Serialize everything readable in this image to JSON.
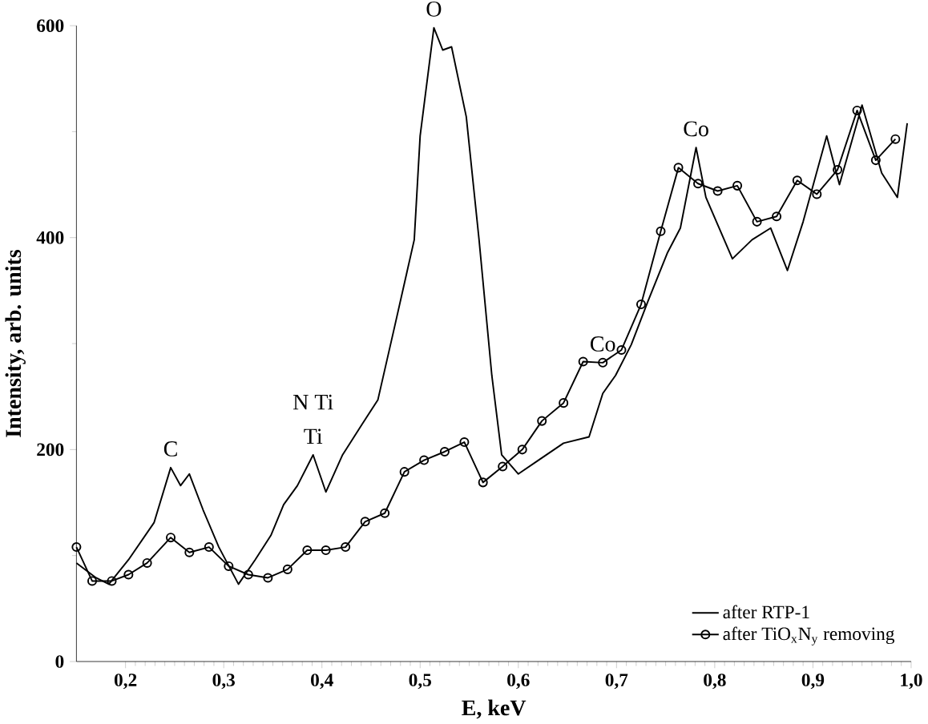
{
  "chart_data": {
    "type": "line",
    "xlabel": "E, keV",
    "ylabel": "Intensity, arb. units",
    "xlim": [
      0.15,
      1.0
    ],
    "ylim": [
      0,
      600
    ],
    "xticks": [
      {
        "value": 0.2,
        "label": "0,2"
      },
      {
        "value": 0.3,
        "label": "0,3"
      },
      {
        "value": 0.4,
        "label": "0,4"
      },
      {
        "value": 0.5,
        "label": "0,5"
      },
      {
        "value": 0.6,
        "label": "0,6"
      },
      {
        "value": 0.7,
        "label": "0,7"
      },
      {
        "value": 0.8,
        "label": "0,8"
      },
      {
        "value": 0.9,
        "label": "0,9"
      },
      {
        "value": 1.0,
        "label": "1,0"
      }
    ],
    "yticks": [
      0,
      200,
      400,
      600
    ],
    "grid": false,
    "legend": "bottom right",
    "series": [
      {
        "name": "after RTP-1",
        "color": "#000000",
        "marker": "none",
        "x": [
          0.15,
          0.17,
          0.183,
          0.203,
          0.229,
          0.246,
          0.256,
          0.265,
          0.279,
          0.295,
          0.315,
          0.332,
          0.348,
          0.361,
          0.375,
          0.391,
          0.404,
          0.421,
          0.441,
          0.457,
          0.474,
          0.494,
          0.5,
          0.514,
          0.523,
          0.532,
          0.547,
          0.56,
          0.573,
          0.583,
          0.6,
          0.619,
          0.646,
          0.672,
          0.686,
          0.699,
          0.715,
          0.732,
          0.752,
          0.765,
          0.781,
          0.791,
          0.818,
          0.838,
          0.857,
          0.874,
          0.89,
          0.914,
          0.927,
          0.95,
          0.97,
          0.986,
          0.996
        ],
        "values": [
          93,
          79,
          73,
          96,
          131,
          183,
          166,
          177,
          143,
          108,
          73,
          96,
          119,
          148,
          166,
          195,
          160,
          195,
          224,
          247,
          316,
          398,
          496,
          598,
          577,
          580,
          514,
          398,
          270,
          195,
          177,
          189,
          206,
          212,
          253,
          270,
          299,
          340,
          386,
          409,
          485,
          438,
          380,
          398,
          409,
          369,
          415,
          496,
          450,
          525,
          461,
          438,
          508
        ]
      },
      {
        "name": "after TiO$_{x}$N$_{y}$ removing",
        "color": "#000000",
        "marker": "circle",
        "x": [
          0.15,
          0.166,
          0.186,
          0.203,
          0.222,
          0.246,
          0.265,
          0.285,
          0.305,
          0.325,
          0.345,
          0.365,
          0.385,
          0.404,
          0.424,
          0.444,
          0.464,
          0.484,
          0.504,
          0.525,
          0.545,
          0.564,
          0.584,
          0.604,
          0.624,
          0.646,
          0.666,
          0.686,
          0.705,
          0.725,
          0.745,
          0.763,
          0.783,
          0.803,
          0.823,
          0.843,
          0.863,
          0.884,
          0.904,
          0.925,
          0.945,
          0.964,
          0.984
        ],
        "values": [
          108,
          76,
          76,
          82,
          93,
          117,
          103,
          108,
          90,
          82,
          79,
          87,
          105,
          105,
          108,
          132,
          140,
          179,
          190,
          198,
          207,
          169,
          184,
          200,
          227,
          244,
          283,
          282,
          294,
          337,
          406,
          466,
          451,
          444,
          449,
          415,
          420,
          454,
          441,
          464,
          520,
          473,
          493
        ]
      }
    ],
    "annotations": [
      {
        "text": "C",
        "x": 0.246,
        "y": 183
      },
      {
        "text": "Ti",
        "x": 0.391,
        "y": 195
      },
      {
        "text": "N Ti",
        "x": 0.391,
        "y": 195
      },
      {
        "text": "O",
        "x": 0.514,
        "y": 598
      },
      {
        "text": "Co",
        "x": 0.686,
        "y": 282
      },
      {
        "text": "Co",
        "x": 0.781,
        "y": 485
      }
    ]
  }
}
